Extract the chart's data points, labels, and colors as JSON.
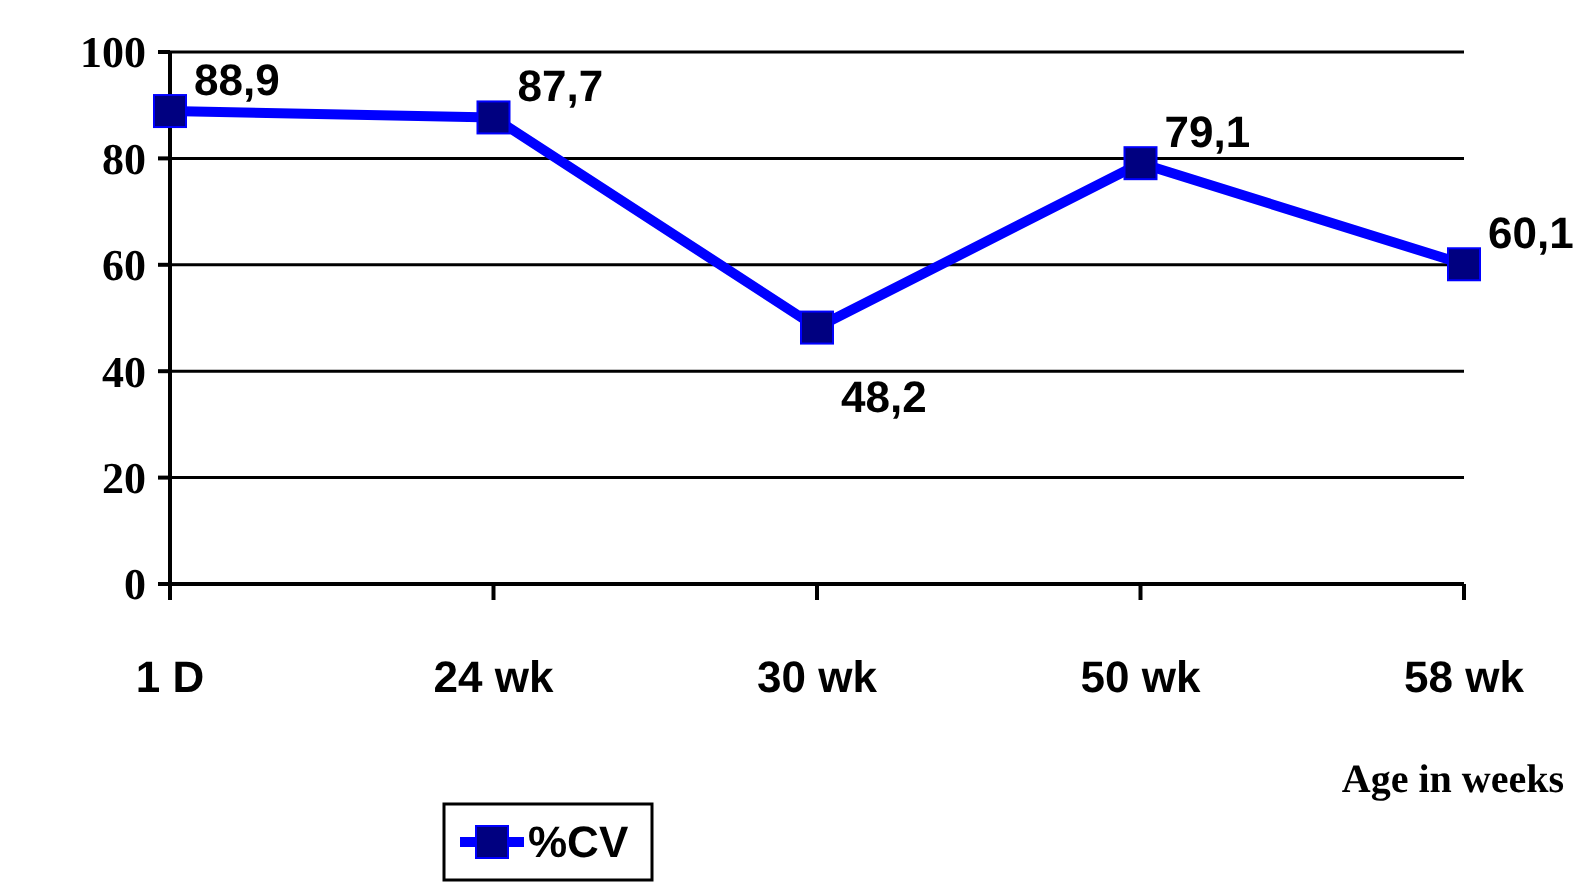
{
  "chart_data": {
    "type": "line",
    "xlabel": "Age in weeks",
    "categories": [
      "1 D",
      "24 wk",
      "30 wk",
      "50 wk",
      "58 wk"
    ],
    "series": [
      {
        "name": "%CV",
        "color": "#0000ff",
        "values": [
          88.9,
          87.7,
          48.2,
          79.1,
          60.1
        ],
        "value_labels": [
          "88,9",
          "87,7",
          "48,2",
          "79,1",
          "60,1"
        ]
      }
    ],
    "ylim": [
      0,
      100
    ],
    "yticks": [
      0,
      20,
      40,
      60,
      80,
      100
    ],
    "grid": "y",
    "legend": "bottom",
    "marker": "square",
    "line_style": "solid"
  }
}
